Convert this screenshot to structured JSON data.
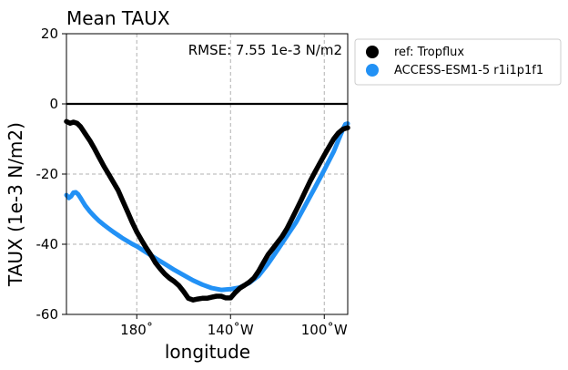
{
  "chart_data": {
    "type": "line",
    "title": "Mean TAUX",
    "annotation": "RMSE: 7.55 1e-3 N/m2",
    "xlabel": "longitude",
    "ylabel": "TAUX (1e-3 N/m2)",
    "xlim": [
      150,
      270
    ],
    "ylim": [
      -60,
      20
    ],
    "grid": true,
    "legend_position": "outside-top-right",
    "x_ticks": [
      {
        "value": 180,
        "label": "180˚"
      },
      {
        "value": 220,
        "label": "140˚W"
      },
      {
        "value": 260,
        "label": "100˚W"
      }
    ],
    "y_ticks": [
      {
        "value": 20,
        "label": "20"
      },
      {
        "value": 0,
        "label": "0"
      },
      {
        "value": -20,
        "label": "-20"
      },
      {
        "value": -40,
        "label": "-40"
      },
      {
        "value": -60,
        "label": "-60"
      }
    ],
    "zero_line": 0,
    "series": [
      {
        "name": "ref: Tropflux",
        "color": "#000000",
        "x": [
          150,
          151.5,
          153,
          154.5,
          156,
          158,
          160,
          162,
          164,
          166,
          168,
          170,
          172,
          174,
          176,
          178,
          180,
          182,
          184,
          186,
          188,
          190,
          192,
          194,
          196,
          198,
          200,
          202,
          204,
          206,
          208,
          210,
          212,
          214,
          216,
          218,
          220,
          222,
          224,
          226,
          228,
          230,
          232,
          234,
          236,
          238,
          240,
          242,
          244,
          246,
          248,
          250,
          252,
          254,
          256,
          258,
          260,
          262,
          264,
          266,
          268,
          270
        ],
        "y": [
          -5,
          -5.5,
          -5.2,
          -5.5,
          -6.5,
          -8.5,
          -10.5,
          -12.8,
          -15.3,
          -17.8,
          -20,
          -22.3,
          -24.6,
          -27.6,
          -30.6,
          -33.7,
          -36.5,
          -38.8,
          -41,
          -43,
          -45.3,
          -47,
          -48.5,
          -49.7,
          -50.6,
          -51.8,
          -53.5,
          -55.4,
          -55.9,
          -55.6,
          -55.4,
          -55.4,
          -55.1,
          -54.8,
          -54.8,
          -55.3,
          -55.3,
          -53.8,
          -52.5,
          -51.7,
          -50.8,
          -49.6,
          -47.7,
          -45.3,
          -43,
          -41.3,
          -39.5,
          -37.8,
          -35.6,
          -33,
          -30.3,
          -27.6,
          -24.8,
          -22,
          -19.5,
          -17,
          -14.6,
          -12.3,
          -10,
          -8.3,
          -7.2,
          -6.8
        ]
      },
      {
        "name": "ACCESS-ESM1-5 r1i1p1f1",
        "color": "#2291f5",
        "x": [
          150,
          151,
          152,
          153,
          154,
          155,
          156,
          157,
          158,
          160,
          162,
          164,
          166,
          168,
          170,
          172,
          174,
          176,
          178,
          180,
          184,
          188,
          192,
          196,
          200,
          204,
          208,
          212,
          216,
          220,
          224,
          228,
          232,
          236,
          240,
          244,
          248,
          252,
          256,
          260,
          264,
          266,
          268,
          269,
          270
        ],
        "y": [
          -26,
          -26.8,
          -26.3,
          -25.3,
          -25.2,
          -25.8,
          -26.8,
          -27.9,
          -29,
          -30.7,
          -32.1,
          -33.4,
          -34.5,
          -35.5,
          -36.5,
          -37.4,
          -38.3,
          -39.1,
          -39.9,
          -40.6,
          -42.3,
          -44,
          -45.6,
          -47.3,
          -48.8,
          -50.3,
          -51.5,
          -52.5,
          -53,
          -52.8,
          -52.3,
          -51,
          -49,
          -45.6,
          -41.7,
          -37.7,
          -33.7,
          -28.8,
          -23.9,
          -18.8,
          -13.6,
          -10.4,
          -7.2,
          -5.8,
          -5.6
        ]
      }
    ]
  }
}
